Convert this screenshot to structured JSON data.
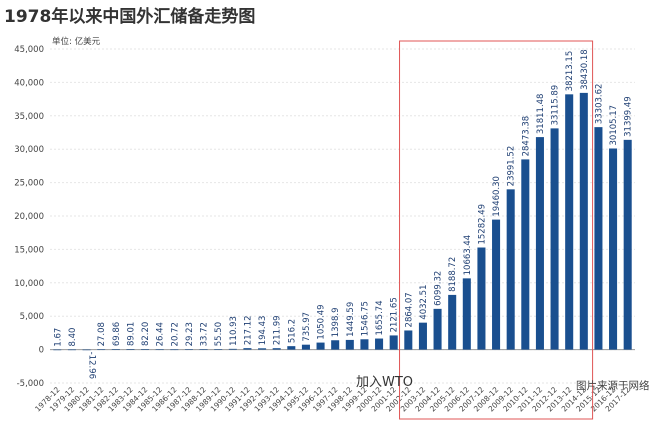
{
  "chart_data": {
    "type": "bar",
    "title": "1978年以来中国外汇储备走势图",
    "unit_label": "单位: 亿美元",
    "y_ticks": [
      "-5,000",
      "0",
      "5,000",
      "10,000",
      "15,000",
      "20,000",
      "25,000",
      "30,000",
      "35,000",
      "40,000",
      "45,000"
    ],
    "y_tick_values": [
      -5000,
      0,
      5000,
      10000,
      15000,
      20000,
      25000,
      30000,
      35000,
      40000,
      45000
    ],
    "ylim": [
      -5000,
      45000
    ],
    "grid": true,
    "categories": [
      "1978-12",
      "1979-12",
      "1980-12",
      "1981-12",
      "1982-12",
      "1983-12",
      "1984-12",
      "1985-12",
      "1986-12",
      "1987-12",
      "1988-12",
      "1989-12",
      "1990-12",
      "1991-12",
      "1992-12",
      "1993-12",
      "1994-12",
      "1995-12",
      "1996-12",
      "1997-12",
      "1998-12",
      "1999-12",
      "2000-12",
      "2001-12",
      "2002-12",
      "2003-12",
      "2004-12",
      "2005-12",
      "2006-12",
      "2007-12",
      "2008-12",
      "2009-12",
      "2010-12",
      "2011-12",
      "2012-12",
      "2013-12",
      "2014-12",
      "2015-12",
      "2016-12",
      "2017-12"
    ],
    "values": [
      1.67,
      8.4,
      -12.96,
      27.08,
      69.86,
      89.01,
      82.2,
      26.44,
      20.72,
      29.23,
      33.72,
      55.5,
      110.93,
      217.12,
      194.43,
      211.99,
      516.2,
      735.97,
      1050.49,
      1398.9,
      1449.59,
      1546.75,
      1655.74,
      2121.65,
      2864.07,
      4032.51,
      6099.32,
      8188.72,
      10663.44,
      15282.49,
      19460.3,
      23991.52,
      28473.38,
      31811.48,
      33115.89,
      38213.15,
      38430.18,
      33303.62,
      30105.17,
      31399.49
    ],
    "data_labels": [
      "1.67",
      "8.40",
      "-12.96",
      "27.08",
      "69.86",
      "89.01",
      "82.20",
      "26.44",
      "20.72",
      "29.23",
      "33.72",
      "55.50",
      "110.93",
      "217.12",
      "194.43",
      "211.99",
      "516.2",
      "735.97",
      "1050.49",
      "1398.9",
      "1449.59",
      "1546.75",
      "1655.74",
      "2121.65",
      "2864.07",
      "4032.51",
      "6099.32",
      "8188.72",
      "10663.44",
      "15282.49",
      "19460.30",
      "23991.52",
      "28473.38",
      "31811.48",
      "33115.89",
      "38213.15",
      "38430.18",
      "33303.62",
      "30105.17",
      "31399.49"
    ],
    "highlight_categories": [
      "2002-12",
      "2014-12"
    ],
    "annotation": "加入WTO",
    "colors": {
      "bar": "#1a4f8f",
      "label": "#1f3f73",
      "highlight": "#e05555",
      "grid": "#e6e6e6"
    }
  },
  "source_note": "图片来源于网络"
}
